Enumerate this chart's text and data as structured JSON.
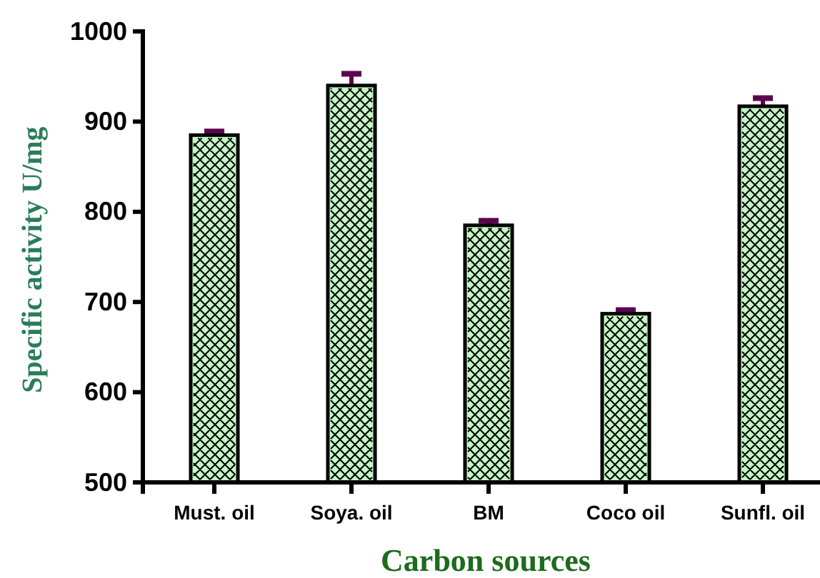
{
  "chart_data": {
    "type": "bar",
    "xlabel": "Carbon sources",
    "ylabel": "Specific activity U/mg",
    "categories": [
      "Must. oil",
      "Soya. oil",
      "BM",
      "Coco oil",
      "Sunfl. oil"
    ],
    "values": [
      885,
      940,
      785,
      687,
      917
    ],
    "color": "#c4f5c4",
    "errors": [
      [
        885,
        889
      ],
      [
        940,
        953
      ],
      [
        785,
        790
      ],
      [
        687,
        691
      ],
      [
        917,
        926
      ]
    ],
    "ylim": [
      500,
      1000
    ],
    "yticks": [
      500,
      600,
      700,
      800,
      900,
      1000
    ]
  }
}
